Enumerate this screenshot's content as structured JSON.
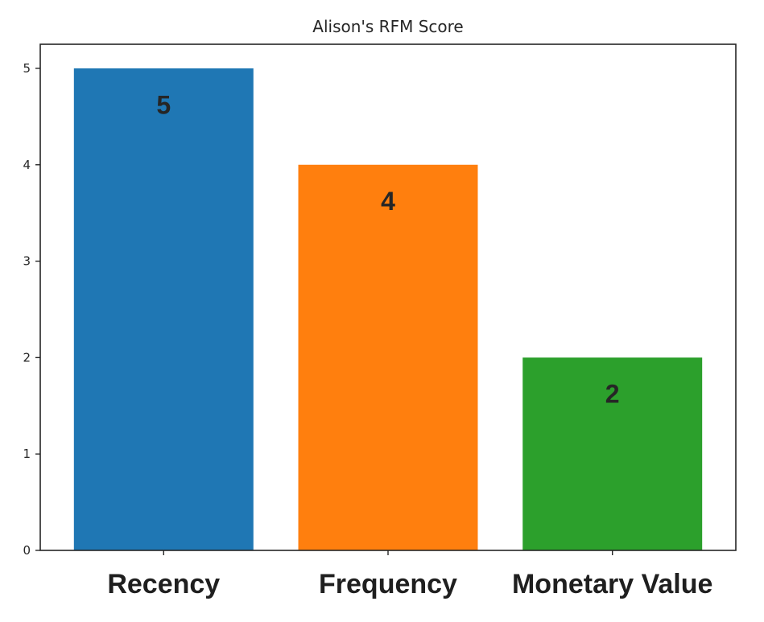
{
  "chart_data": {
    "type": "bar",
    "title": "Alison's RFM Score",
    "categories": [
      "Recency",
      "Frequency",
      "Monetary Value"
    ],
    "values": [
      5,
      4,
      2
    ],
    "data_labels": [
      "5",
      "4",
      "2"
    ],
    "colors": [
      "#1f77b4",
      "#ff7f0e",
      "#2ca02c"
    ],
    "xlabel": "",
    "ylabel": "",
    "ylim": [
      0,
      5.25
    ],
    "yticks": [
      0,
      1,
      2,
      3,
      4,
      5
    ],
    "grid": false,
    "legend": "none"
  }
}
